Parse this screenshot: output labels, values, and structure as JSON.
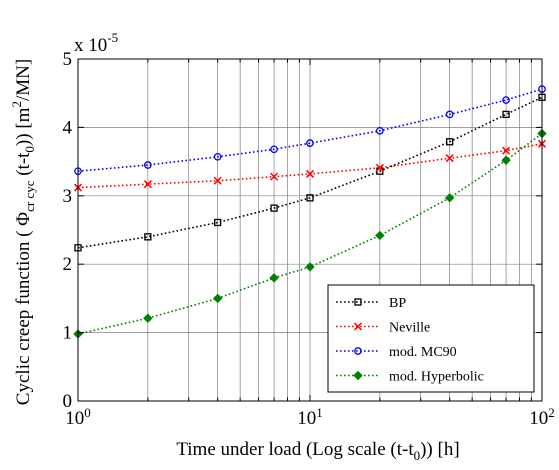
{
  "chart_data": {
    "type": "line",
    "title": "",
    "xlabel": "Time under load (Log scale (t-t0)) [h]",
    "ylabel": "Cyclic creep function ( Φcr cyc (t-t0)) [m2/MN]",
    "xscale": "log",
    "xlim": [
      1,
      100
    ],
    "ylim": [
      0,
      5
    ],
    "y_multiplier": "x 10-5",
    "x_ticks": [
      1,
      10,
      100
    ],
    "x_tick_labels": [
      "10^0",
      "10^1",
      "10^2"
    ],
    "y_ticks": [
      0,
      1,
      2,
      3,
      4,
      5
    ],
    "grid": true,
    "legend_position": "bottom-right",
    "series": [
      {
        "name": "BP",
        "color": "#000000",
        "marker": "square",
        "x": [
          1,
          2,
          4,
          7,
          10,
          20,
          40,
          70,
          100
        ],
        "y": [
          2.24,
          2.4,
          2.61,
          2.82,
          2.97,
          3.36,
          3.79,
          4.19,
          4.44
        ]
      },
      {
        "name": "Neville",
        "color": "#ff0000",
        "marker": "x",
        "x": [
          1,
          2,
          4,
          7,
          10,
          20,
          40,
          70,
          100
        ],
        "y": [
          3.12,
          3.17,
          3.22,
          3.28,
          3.32,
          3.41,
          3.55,
          3.66,
          3.76
        ]
      },
      {
        "name": "mod. MC90",
        "color": "#0000ff",
        "marker": "circle",
        "x": [
          1,
          2,
          4,
          7,
          10,
          20,
          40,
          70,
          100
        ],
        "y": [
          3.36,
          3.45,
          3.57,
          3.68,
          3.77,
          3.95,
          4.19,
          4.4,
          4.56
        ]
      },
      {
        "name": "mod. Hyperbolic",
        "color": "#008000",
        "marker": "diamond",
        "x": [
          1,
          2,
          4,
          7,
          10,
          20,
          40,
          70,
          100
        ],
        "y": [
          0.98,
          1.21,
          1.5,
          1.8,
          1.96,
          2.42,
          2.97,
          3.52,
          3.91
        ]
      }
    ]
  }
}
